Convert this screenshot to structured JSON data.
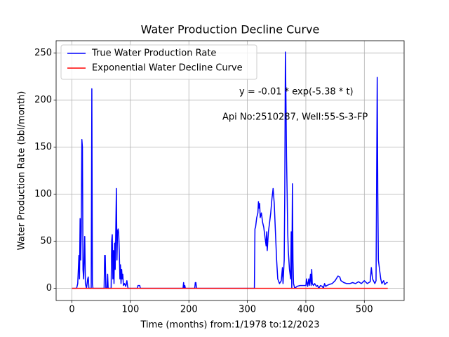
{
  "chart_data": {
    "type": "line",
    "title": "Water Production Decline Curve",
    "xlabel": "Time (months) from:1/1978 to:12/2023",
    "ylabel": "Water Production Rate (bbl/month)",
    "annotations": [
      "y = -0.01 * exp(-5.38 * t)",
      "Api No:2510287, Well:55-S-3-FP"
    ],
    "xlim": [
      -27,
      568
    ],
    "ylim": [
      -13,
      263
    ],
    "xticks": [
      0,
      100,
      200,
      300,
      400,
      500
    ],
    "yticks": [
      0,
      50,
      100,
      150,
      200,
      250
    ],
    "grid": true,
    "legend": "upper left",
    "series": [
      {
        "name": "True Water Production Rate",
        "color": "#0000ff",
        "x": [
          0,
          8,
          10,
          12,
          13,
          14,
          15,
          16,
          17,
          18,
          19,
          20,
          22,
          23,
          25,
          27,
          28,
          29,
          33,
          34,
          35,
          36,
          55,
          56,
          57,
          58,
          60,
          61,
          62,
          67,
          68,
          69,
          70,
          71,
          72,
          73,
          74,
          75,
          76,
          77,
          78,
          79,
          80,
          81,
          82,
          83,
          84,
          85,
          86,
          87,
          88,
          90,
          92,
          94,
          95,
          96,
          112,
          113,
          116,
          117,
          190,
          191,
          192,
          193,
          194,
          210,
          211,
          212,
          213,
          312,
          313,
          314,
          316,
          318,
          319,
          320,
          321,
          322,
          324,
          326,
          328,
          330,
          332,
          333,
          334,
          336,
          338,
          340,
          342,
          344,
          346,
          348,
          350,
          352,
          355,
          358,
          360,
          361,
          363,
          364,
          365,
          366,
          367,
          368,
          369,
          370,
          372,
          374,
          375,
          376,
          377,
          378,
          379,
          381,
          385,
          390,
          395,
          400,
          401,
          403,
          405,
          406,
          408,
          409,
          410,
          411,
          413,
          415,
          418,
          420,
          422,
          425,
          428,
          430,
          432,
          434,
          436,
          440,
          445,
          450,
          455,
          458,
          460,
          465,
          470,
          475,
          480,
          485,
          490,
          495,
          500,
          505,
          510,
          512,
          514,
          518,
          520,
          522,
          523,
          524,
          526,
          528,
          530,
          533,
          535,
          538,
          540
        ],
        "values": [
          0,
          0,
          5,
          35,
          10,
          74,
          30,
          60,
          158,
          150,
          20,
          10,
          55,
          5,
          0,
          10,
          12,
          0,
          0,
          212,
          5,
          0,
          0,
          35,
          35,
          0,
          0,
          15,
          0,
          0,
          50,
          57,
          10,
          40,
          5,
          48,
          20,
          60,
          106,
          30,
          60,
          63,
          58,
          40,
          10,
          25,
          5,
          20,
          10,
          15,
          3,
          5,
          2,
          8,
          3,
          0,
          0,
          3,
          3,
          0,
          0,
          6,
          0,
          3,
          0,
          0,
          6,
          6,
          0,
          0,
          63,
          65,
          75,
          80,
          92,
          85,
          90,
          75,
          80,
          70,
          65,
          55,
          45,
          60,
          40,
          60,
          70,
          80,
          95,
          106,
          90,
          60,
          30,
          10,
          5,
          8,
          22,
          5,
          30,
          100,
          251,
          200,
          140,
          100,
          60,
          40,
          20,
          10,
          60,
          0,
          111,
          30,
          5,
          0,
          2,
          3,
          3,
          3,
          10,
          2,
          10,
          3,
          15,
          3,
          20,
          5,
          3,
          5,
          2,
          3,
          0,
          3,
          2,
          0,
          5,
          2,
          3,
          4,
          5,
          8,
          13,
          12,
          8,
          6,
          5,
          5,
          6,
          5,
          7,
          5,
          8,
          5,
          7,
          22,
          10,
          5,
          8,
          224,
          100,
          30,
          20,
          10,
          5,
          8,
          4,
          6,
          6
        ]
      },
      {
        "name": "Exponential Water Decline Curve",
        "color": "#ff0000",
        "x": [
          0,
          540
        ],
        "values": [
          0,
          0
        ]
      }
    ]
  }
}
